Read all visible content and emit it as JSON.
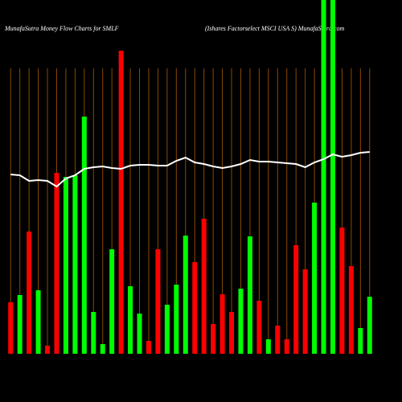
{
  "chart_data": {
    "type": "bar",
    "title": "MunafaSutra  Money Flow  Charts for SMLF",
    "subtitle": "(Ishares Factorselect MSCI USA S) MunafaSutra.com",
    "ylim": [
      0,
      440
    ],
    "grid": true,
    "series": [
      {
        "name": "Money Flow",
        "up_color": "#00ff00",
        "down_color": "#ff0000",
        "direction": [
          "down",
          "up",
          "down",
          "up",
          "down",
          "down",
          "up",
          "up",
          "up",
          "up",
          "up",
          "up",
          "down",
          "up",
          "up",
          "down",
          "down",
          "up",
          "up",
          "up",
          "down",
          "down",
          "down",
          "down",
          "down",
          "up",
          "up",
          "down",
          "up",
          "down",
          "down",
          "down",
          "down",
          "up",
          "up",
          "up",
          "down",
          "down",
          "up",
          "up"
        ],
        "values": [
          64,
          73,
          152,
          79,
          10,
          225,
          220,
          222,
          295,
          52,
          12,
          130,
          377,
          84,
          50,
          16,
          130,
          61,
          86,
          147,
          114,
          168,
          37,
          74,
          52,
          81,
          146,
          66,
          18,
          35,
          18,
          135,
          105,
          188,
          445,
          445,
          157,
          109,
          32,
          71
        ]
      },
      {
        "name": "Price",
        "color": "#ffffff",
        "values": [
          223,
          222,
          215,
          216,
          215,
          208,
          218,
          222,
          230,
          232,
          233,
          231,
          230,
          234,
          235,
          235,
          234,
          234,
          240,
          244,
          238,
          236,
          233,
          231,
          233,
          236,
          241,
          239,
          239,
          238,
          237,
          236,
          232,
          238,
          242,
          248,
          245,
          247,
          250,
          251
        ]
      }
    ]
  }
}
